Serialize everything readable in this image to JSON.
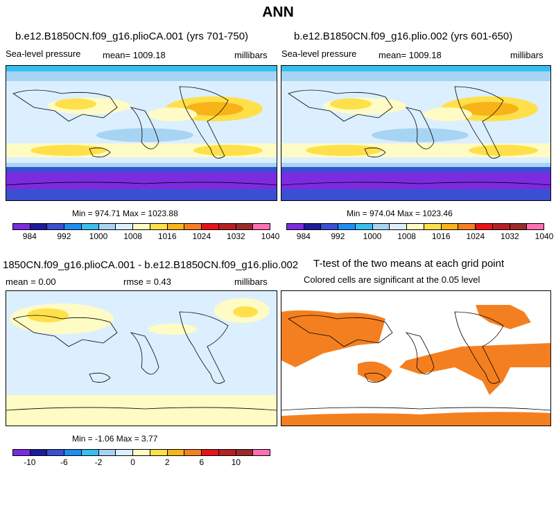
{
  "title": "ANN",
  "units": "millibars",
  "panels": [
    {
      "id": "case1",
      "title": "b.e12.B1850CN.f09_g16.plioCA.001 (yrs 701-750)",
      "subtitle_left": "Sea-level pressure",
      "mean": "mean= 1009.18",
      "units": "millibars",
      "stats": "Min = 974.71 Max = 1023.88"
    },
    {
      "id": "case2",
      "title": "b.e12.B1850CN.f09_g16.plio.002 (yrs 601-650)",
      "subtitle_left": "Sea-level pressure",
      "mean": "mean= 1009.18",
      "units": "millibars",
      "stats": "Min = 974.04 Max = 1023.46"
    },
    {
      "id": "diff",
      "title": "1850CN.f09_g16.plioCA.001 - b.e12.B1850CN.f09_g16.plio.002",
      "mean": "mean =    0.00",
      "rmse": "rmse =    0.43",
      "units": "millibars",
      "stats": "Min =  -1.06 Max =    3.77"
    },
    {
      "id": "ttest",
      "title": "T-test of the two means at each grid point",
      "subtitle": "Colored cells are significant at the 0.05 level"
    }
  ],
  "colorbar_abs": {
    "colors": [
      "#7d2be0",
      "#1d1a9e",
      "#3b4fd1",
      "#1e8ff0",
      "#38bff0",
      "#a7d4f2",
      "#dcefff",
      "#fffbc4",
      "#ffe04a",
      "#f7b318",
      "#f47f20",
      "#e8121a",
      "#b81f22",
      "#9c2a2a",
      "#ff6fb3"
    ],
    "ticks": [
      "984",
      "992",
      "1000",
      "1008",
      "1016",
      "1024",
      "1032",
      "1040"
    ]
  },
  "colorbar_diff": {
    "colors": [
      "#7d2be0",
      "#1d1a9e",
      "#3b4fd1",
      "#1e8ff0",
      "#38bff0",
      "#a7d4f2",
      "#dcefff",
      "#fffbc4",
      "#ffe04a",
      "#f7b318",
      "#f47f20",
      "#e8121a",
      "#b81f22",
      "#9c2a2a",
      "#ff6fb3"
    ],
    "ticks": [
      "-10",
      "-6",
      "-2",
      "0",
      "2",
      "6",
      "10"
    ]
  },
  "chart_data": [
    {
      "type": "heatmap",
      "title": "b.e12.B1850CN.f09_g16.plioCA.001 (yrs 701-750)",
      "variable": "Sea-level pressure",
      "units": "millibars",
      "mean": 1009.18,
      "min": 974.71,
      "max": 1023.88,
      "colorbar_ticks": [
        984,
        992,
        1000,
        1008,
        1016,
        1024,
        1032,
        1040
      ]
    },
    {
      "type": "heatmap",
      "title": "b.e12.B1850CN.f09_g16.plio.002 (yrs 601-650)",
      "variable": "Sea-level pressure",
      "units": "millibars",
      "mean": 1009.18,
      "min": 974.04,
      "max": 1023.46,
      "colorbar_ticks": [
        984,
        992,
        1000,
        1008,
        1016,
        1024,
        1032,
        1040
      ]
    },
    {
      "type": "heatmap",
      "title": "1850CN.f09_g16.plioCA.001 - b.e12.B1850CN.f09_g16.plio.002",
      "units": "millibars",
      "mean": 0.0,
      "rmse": 0.43,
      "min": -1.06,
      "max": 3.77,
      "colorbar_ticks": [
        -10,
        -6,
        -2,
        0,
        2,
        6,
        10
      ]
    },
    {
      "type": "heatmap",
      "title": "T-test of the two means at each grid point",
      "note": "Colored cells are significant at the 0.05 level",
      "significant_color": "#f47f20"
    }
  ]
}
